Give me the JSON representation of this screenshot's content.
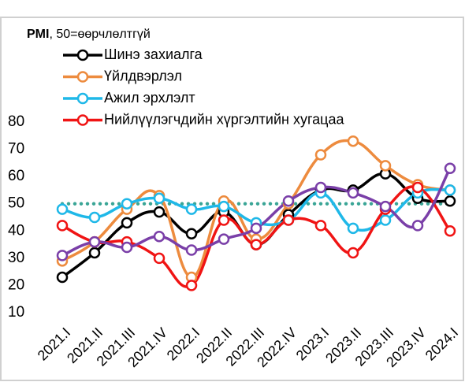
{
  "chart_data": {
    "type": "line",
    "subtitle_parts": [
      "PMI",
      ", 50=өөрчлөлтгүй"
    ],
    "categories": [
      "2021.I",
      "2021.II",
      "2021.III",
      "2021.IV",
      "2022.I",
      "2022.II",
      "2022.III",
      "2022.IV",
      "2023.I",
      "2023.II",
      "2023.III",
      "2023.IV",
      "2024.I"
    ],
    "series": [
      {
        "name": "Шинэ захиалга",
        "color": "#000000",
        "values": [
          23,
          32,
          43,
          47,
          39,
          47,
          35,
          46,
          55,
          55,
          61,
          52,
          51
        ]
      },
      {
        "name": "Үйлдвэрлэл",
        "color": "#ed8b3e",
        "values": [
          29,
          36,
          48,
          53,
          23,
          51,
          37,
          50,
          68,
          73,
          64,
          57,
          55
        ]
      },
      {
        "name": "Ажил эрхлэлт",
        "color": "#1fb8e8",
        "values": [
          48,
          45,
          50,
          52,
          48,
          49,
          43,
          44,
          54,
          41,
          44,
          54,
          55
        ]
      },
      {
        "name": "Нийлүүлэгчдийн хүргэлтийн хугацаа",
        "color": "#f01414",
        "values": [
          42,
          36,
          36,
          30,
          20,
          44,
          35,
          44,
          42,
          32,
          48,
          56,
          40
        ]
      },
      {
        "color": "#7a3fa8",
        "values": [
          31,
          36,
          34,
          38,
          33,
          37,
          41,
          51,
          56,
          54,
          49,
          42,
          63
        ]
      }
    ],
    "reference_line": {
      "value": 50,
      "color": "#3aa596"
    },
    "ylim": [
      10,
      80
    ],
    "yticks": [
      10,
      20,
      30,
      40,
      50,
      60,
      70,
      80
    ]
  }
}
